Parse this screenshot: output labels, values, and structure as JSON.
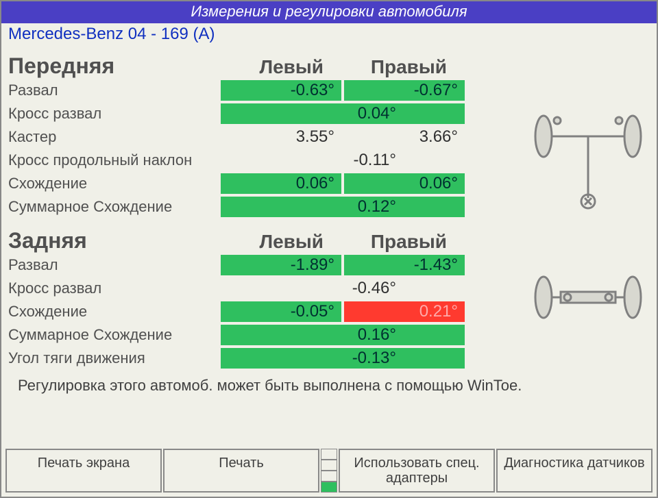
{
  "title": "Измерения и регулировки автомобиля",
  "vehicle": "Mercedes-Benz 04 - 169 (A)",
  "colors": {
    "title_bar_bg": "#4a3fc4",
    "green_cell": "#2fbf5f",
    "red_cell": "#ff3a2f",
    "page_bg": "#f0f0e8",
    "text_gray": "#505050",
    "vehicle_text": "#1030c0"
  },
  "columns": {
    "left": "Левый",
    "right": "Правый"
  },
  "front": {
    "title": "Передняя",
    "rows": [
      {
        "label": "Развал",
        "left": {
          "v": "-0.63°",
          "s": "green"
        },
        "right": {
          "v": "-0.67°",
          "s": "green"
        }
      },
      {
        "label": "Кросс развал",
        "center": {
          "v": "0.04°",
          "s": "green"
        }
      },
      {
        "label": "Кастер",
        "left": {
          "v": "3.55°",
          "s": "plain"
        },
        "right": {
          "v": "3.66°",
          "s": "plain"
        }
      },
      {
        "label": "Кросс продольный наклон",
        "center": {
          "v": "-0.11°",
          "s": "plain"
        }
      },
      {
        "label": "Схождение",
        "left": {
          "v": "0.06°",
          "s": "green"
        },
        "right": {
          "v": "0.06°",
          "s": "green"
        }
      },
      {
        "label": "Суммарное Схождение",
        "center": {
          "v": "0.12°",
          "s": "green"
        }
      }
    ]
  },
  "rear": {
    "title": "Задняя",
    "rows": [
      {
        "label": "Развал",
        "left": {
          "v": "-1.89°",
          "s": "green"
        },
        "right": {
          "v": "-1.43°",
          "s": "green"
        }
      },
      {
        "label": "Кросс развал",
        "center": {
          "v": "-0.46°",
          "s": "plain"
        }
      },
      {
        "label": "Схождение",
        "left": {
          "v": "-0.05°",
          "s": "green"
        },
        "right": {
          "v": "0.21°",
          "s": "red"
        }
      },
      {
        "label": "Суммарное Схождение",
        "center": {
          "v": "0.16°",
          "s": "green"
        }
      },
      {
        "label": "Угол тяги движения",
        "center": {
          "v": "-0.13°",
          "s": "green"
        }
      }
    ]
  },
  "hint": "Регулировка этого автомоб. может быть выполнена с помощью WinToe.",
  "buttons": {
    "print_screen": "Печать экрана",
    "print": "Печать",
    "adapters": "Использовать спец. адаптеры",
    "sensors": "Диагностика датчиков"
  },
  "indicator_colors": [
    "#f0f0e8",
    "#f0f0e8",
    "#f0f0e8",
    "#2fbf5f"
  ],
  "diagram": {
    "stroke": "#808080",
    "fill": "#d8d8d0"
  }
}
